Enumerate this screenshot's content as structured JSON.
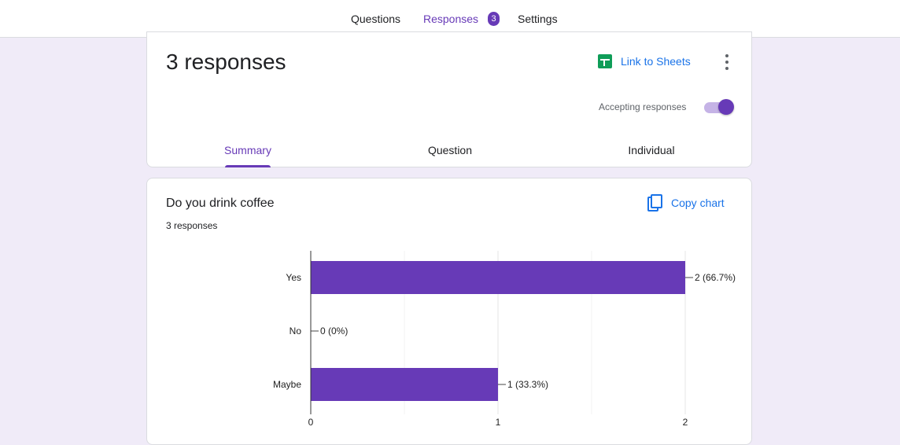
{
  "topbar": {
    "tabs": [
      {
        "label": "Questions"
      },
      {
        "label": "Responses",
        "badge": "3"
      },
      {
        "label": "Settings"
      }
    ]
  },
  "summary_card": {
    "title": "3 responses",
    "link_sheets_label": "Link to Sheets",
    "accepting_label": "Accepting responses",
    "accepting": true,
    "tabs": [
      {
        "label": "Summary"
      },
      {
        "label": "Question"
      },
      {
        "label": "Individual"
      }
    ]
  },
  "question_card": {
    "title": "Do you drink coffee",
    "count": "3 responses",
    "copy_chart_label": "Copy chart"
  },
  "colors": {
    "accent": "#673ab7",
    "link": "#1a73e8",
    "background": "#f0ebf8",
    "sheets_green": "#0f9d58"
  },
  "chart_data": {
    "type": "bar",
    "orientation": "horizontal",
    "categories": [
      "Yes",
      "No",
      "Maybe"
    ],
    "values": [
      2,
      0,
      1
    ],
    "data_labels": [
      "2 (66.7%)",
      "0 (0%)",
      "1 (33.3%)"
    ],
    "xlim": [
      0,
      2
    ],
    "x_ticks": [
      "0",
      "1",
      "2"
    ],
    "grid": true,
    "bar_color": "#673ab7"
  }
}
